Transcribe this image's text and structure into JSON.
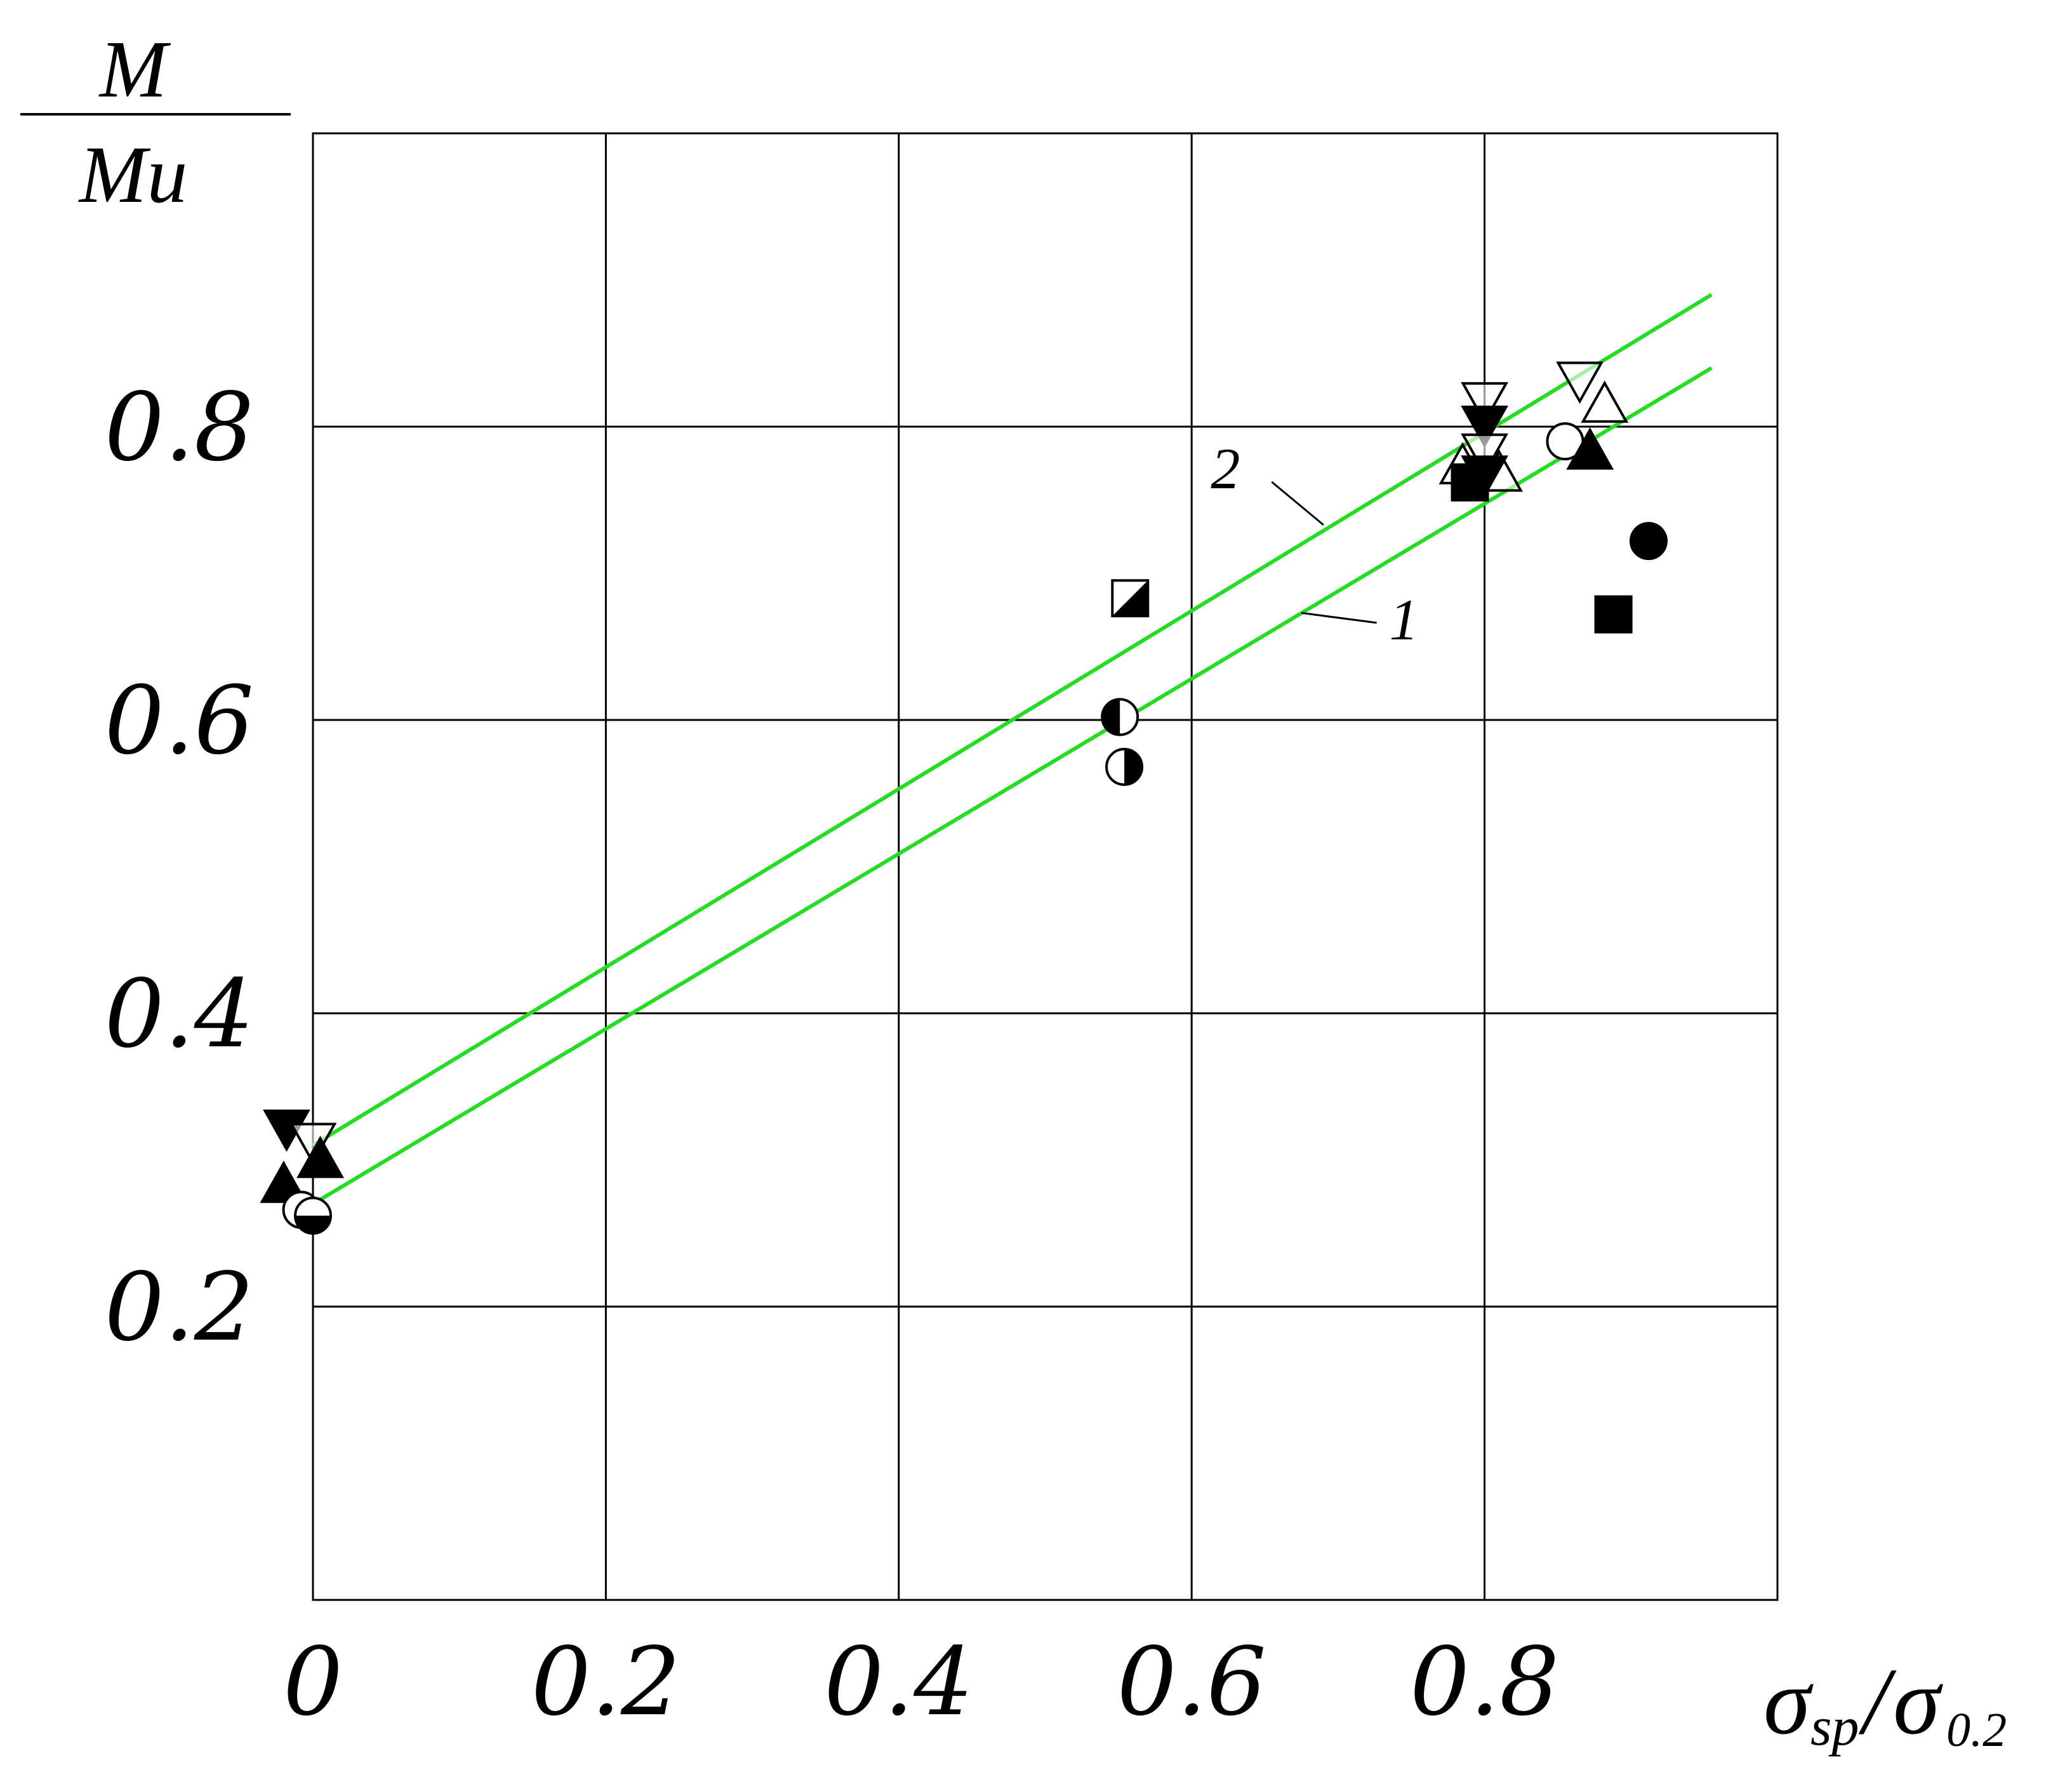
{
  "chart_data": {
    "type": "scatter",
    "title": "",
    "ylabel": {
      "numerator": "M",
      "denominator": "Mu"
    },
    "xlabel": {
      "main": "σ",
      "sub1": "sp",
      "slash": "/",
      "main2": "σ",
      "sub2": "0.2"
    },
    "xlim": [
      0,
      1.0
    ],
    "ylim": [
      0,
      1.0
    ],
    "grid": true,
    "x_ticks": [
      {
        "value": 0,
        "label": "0"
      },
      {
        "value": 0.2,
        "label": "0.2"
      },
      {
        "value": 0.4,
        "label": "0.4"
      },
      {
        "value": 0.6,
        "label": "0.6"
      },
      {
        "value": 0.8,
        "label": "0.8"
      }
    ],
    "y_ticks": [
      {
        "value": 0.2,
        "label": "0.2"
      },
      {
        "value": 0.4,
        "label": "0.4"
      },
      {
        "value": 0.6,
        "label": "0.6"
      },
      {
        "value": 0.8,
        "label": "0.8"
      }
    ],
    "line_color": "#22dd22",
    "lines": [
      {
        "name": "1",
        "label": "1",
        "x": [
          0,
          0.955
        ],
        "y": [
          0.27,
          0.84
        ],
        "label_at": [
          0.735,
          0.655
        ],
        "leader_at": [
          0.675,
          0.673
        ]
      },
      {
        "name": "2",
        "label": "2",
        "x": [
          0,
          0.955
        ],
        "y": [
          0.31,
          0.89
        ],
        "label_at": [
          0.633,
          0.758
        ],
        "leader_at": [
          0.69,
          0.733
        ]
      }
    ],
    "points": [
      {
        "x": -0.018,
        "y": 0.322,
        "marker": "triangle-down-filled"
      },
      {
        "x": 0.0,
        "y": 0.313,
        "marker": "triangle-down-open"
      },
      {
        "x": 0.005,
        "y": 0.3,
        "marker": "triangle-up-filled"
      },
      {
        "x": -0.02,
        "y": 0.283,
        "marker": "triangle-up-filled"
      },
      {
        "x": -0.008,
        "y": 0.266,
        "marker": "circle-open"
      },
      {
        "x": 0.0,
        "y": 0.262,
        "marker": "circle-bottom-filled"
      },
      {
        "x": 0.558,
        "y": 0.683,
        "marker": "square-diag-filled"
      },
      {
        "x": 0.551,
        "y": 0.602,
        "marker": "circle-left-filled"
      },
      {
        "x": 0.554,
        "y": 0.568,
        "marker": "circle-right-filled"
      },
      {
        "x": 0.8,
        "y": 0.818,
        "marker": "triangle-down-open"
      },
      {
        "x": 0.8,
        "y": 0.802,
        "marker": "triangle-down-filled"
      },
      {
        "x": 0.8,
        "y": 0.783,
        "marker": "triangle-down-open"
      },
      {
        "x": 0.785,
        "y": 0.773,
        "marker": "triangle-up-open"
      },
      {
        "x": 0.81,
        "y": 0.768,
        "marker": "triangle-up-open"
      },
      {
        "x": 0.8,
        "y": 0.768,
        "marker": "triangle-down-filled"
      },
      {
        "x": 0.79,
        "y": 0.762,
        "marker": "square-filled"
      },
      {
        "x": 0.865,
        "y": 0.832,
        "marker": "triangle-down-open"
      },
      {
        "x": 0.882,
        "y": 0.815,
        "marker": "triangle-up-open"
      },
      {
        "x": 0.855,
        "y": 0.79,
        "marker": "circle-open"
      },
      {
        "x": 0.872,
        "y": 0.783,
        "marker": "triangle-up-filled"
      },
      {
        "x": 0.912,
        "y": 0.722,
        "marker": "circle-filled"
      },
      {
        "x": 0.888,
        "y": 0.672,
        "marker": "square-filled"
      }
    ]
  }
}
